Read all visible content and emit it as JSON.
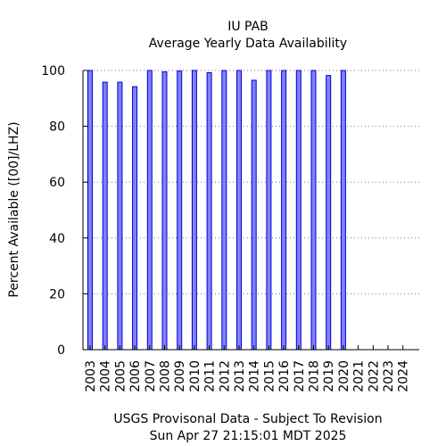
{
  "chart_data": {
    "type": "bar",
    "title": "IU PAB",
    "subtitle": "Average Yearly Data Availability",
    "ylabel": "Percent Available ([00]/LHZ)",
    "footer_line1": "USGS Provisonal Data - Subject To Revision",
    "footer_line2": "Sun Apr 27 21:15:01 MDT 2025",
    "ylim": [
      0,
      100
    ],
    "yticks": [
      "0",
      "20",
      "40",
      "60",
      "80",
      "100"
    ],
    "grid": "horizontal-dotted",
    "colors": {
      "bar_fill": "#8080ff",
      "bar_stroke": "#0000cc"
    },
    "categories": [
      "2003",
      "2004",
      "2005",
      "2006",
      "2007",
      "2008",
      "2009",
      "2010",
      "2011",
      "2012",
      "2013",
      "2014",
      "2015",
      "2016",
      "2017",
      "2018",
      "2019",
      "2020",
      "2021",
      "2022",
      "2023",
      "2024"
    ],
    "values": [
      100,
      95.8,
      95.8,
      94.2,
      100,
      99.5,
      99.8,
      100,
      99.2,
      100,
      100,
      96.5,
      100,
      100,
      100,
      100,
      98.2,
      100,
      0,
      0,
      0,
      0
    ]
  }
}
